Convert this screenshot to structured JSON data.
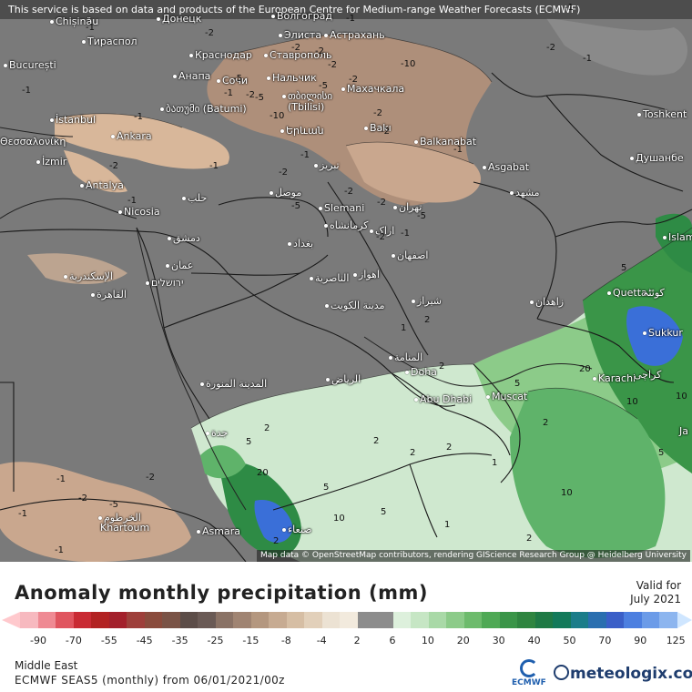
{
  "header": {
    "disclaimer": "This service is based on data and products of the European Centre for Medium-range Weather Forecasts (ECMWF)"
  },
  "map": {
    "attribution": "Map data © OpenStreetMap contributors, rendering GIScience Research Group @ Heidelberg University",
    "colors": {
      "background_no_anomaly": "#7a7a7a",
      "sea": "#6f6f6f",
      "dry_light": "#d8b79a",
      "dry_medium": "#b4917a",
      "wet_light": "#cfe8cf",
      "wet_medium": "#5fb36a",
      "wet_strong": "#2e8b45",
      "wet_blue": "#3a6fd8"
    },
    "cities": [
      {
        "name": "Chișinău"
      },
      {
        "name": "Донецк"
      },
      {
        "name": "Волгоград"
      },
      {
        "name": "Тираспол"
      },
      {
        "name": "Элиста"
      },
      {
        "name": "Астрахань"
      },
      {
        "name": "București"
      },
      {
        "name": "Краснодар"
      },
      {
        "name": "Ставрополь"
      },
      {
        "name": "Анапа"
      },
      {
        "name": "Сочи"
      },
      {
        "name": "Нальчик"
      },
      {
        "name": "Махачкала"
      },
      {
        "name": "თბილისი"
      },
      {
        "name": "(Tbilisi)"
      },
      {
        "name": "ბათუმი (Batumi)"
      },
      {
        "name": "İstanbul"
      },
      {
        "name": "Θεσσαλονίκη"
      },
      {
        "name": "Ankara"
      },
      {
        "name": "Երևան"
      },
      {
        "name": "Bakı"
      },
      {
        "name": "Balkanabat"
      },
      {
        "name": "Toshkent"
      },
      {
        "name": "İzmir"
      },
      {
        "name": "Asgabat"
      },
      {
        "name": "Душанбе"
      },
      {
        "name": "Antalya"
      },
      {
        "name": "حلب"
      },
      {
        "name": "موصل"
      },
      {
        "name": "تبریز"
      },
      {
        "name": "مشهد"
      },
      {
        "name": "Nicosia"
      },
      {
        "name": "Slemani"
      },
      {
        "name": "تهران"
      },
      {
        "name": "کرمانشاه"
      },
      {
        "name": "دمشق"
      },
      {
        "name": "بغداد"
      },
      {
        "name": "اراک"
      },
      {
        "name": "Islam"
      },
      {
        "name": "عمان"
      },
      {
        "name": "اصفهان"
      },
      {
        "name": "الإسكندرية"
      },
      {
        "name": "ירושלים"
      },
      {
        "name": "القاهرة"
      },
      {
        "name": "الناصرية"
      },
      {
        "name": "اهواز"
      },
      {
        "name": "زاهدان"
      },
      {
        "name": "Quetta"
      },
      {
        "name": "کوئٹہ"
      },
      {
        "name": "مدينة الكويت"
      },
      {
        "name": "شیراز"
      },
      {
        "name": "Sukkur"
      },
      {
        "name": "Doha"
      },
      {
        "name": "المنامة"
      },
      {
        "name": "الرياض"
      },
      {
        "name": "المدينة المنورة"
      },
      {
        "name": "Abu Dhabi"
      },
      {
        "name": "Karachi"
      },
      {
        "name": "کراچی"
      },
      {
        "name": "Muscat"
      },
      {
        "name": "جدة"
      },
      {
        "name": "Ja"
      },
      {
        "name": "الخرطوم"
      },
      {
        "name": "Khartoum"
      },
      {
        "name": "صنعاء"
      },
      {
        "name": "Asmara"
      }
    ],
    "contour_labels": [
      "-1",
      "-2",
      "-2",
      "-1",
      "-2",
      "-5",
      "-10",
      "-2",
      "-1",
      "-2",
      "-1",
      "-5",
      "-2",
      "-2",
      "-2",
      "-5",
      "-2",
      "-1",
      "-1",
      "-2",
      "-5",
      "-10",
      "-1",
      "-1",
      "-2",
      "-1",
      "-2",
      "-1",
      "-2",
      "-2",
      "-1",
      "-1",
      "-2",
      "-1",
      "-5",
      "-1",
      "2",
      "5",
      "2",
      "2",
      "20",
      "5",
      "10",
      "2",
      "5",
      "10",
      "1",
      "2",
      "5",
      "10",
      "20",
      "5",
      "10",
      "2",
      "2",
      "1",
      "5",
      "-1",
      "-2",
      "-5",
      "2",
      "1",
      "2"
    ]
  },
  "legend": {
    "title": "Anomaly monthly precipitation (mm)",
    "valid_label": "Valid for",
    "valid_date": "July 2021",
    "colors": [
      "#f7b9bf",
      "#ef8a93",
      "#e0555f",
      "#c92a33",
      "#b22222",
      "#a3202b",
      "#9e3f3a",
      "#8a4b3c",
      "#7a5346",
      "#5c4d48",
      "#6a5a55",
      "#8a7265",
      "#a08472",
      "#b4977f",
      "#c7ab92",
      "#d6bea4",
      "#e2d0ba",
      "#ece2d3",
      "#f2eadd",
      "#8c8c8c",
      "#8c8c8c",
      "#ddf0dc",
      "#c6e6c4",
      "#a9d9a7",
      "#8ccb89",
      "#6dbb6c",
      "#4fa955",
      "#3a9548",
      "#2f8540",
      "#1f7a45",
      "#137a5a",
      "#1b7d8a",
      "#2a6fb0",
      "#3a5fc8",
      "#4c7fe0",
      "#6b9be8",
      "#8cb5ef",
      "#a9c8f3",
      "#c0d8f6",
      "#d6e6fa"
    ],
    "ticks": [
      "-90",
      "-70",
      "-55",
      "-45",
      "-35",
      "-25",
      "-15",
      "-8",
      "-4",
      "2",
      "6",
      "10",
      "20",
      "30",
      "40",
      "50",
      "70",
      "90",
      "125"
    ],
    "region": "Middle East",
    "model_run": "ECMWF SEAS5 (monthly) from 06/01/2021/00z",
    "ecmwf_logo_text": "ECMWF",
    "meteologix_text": "meteologix.com"
  }
}
